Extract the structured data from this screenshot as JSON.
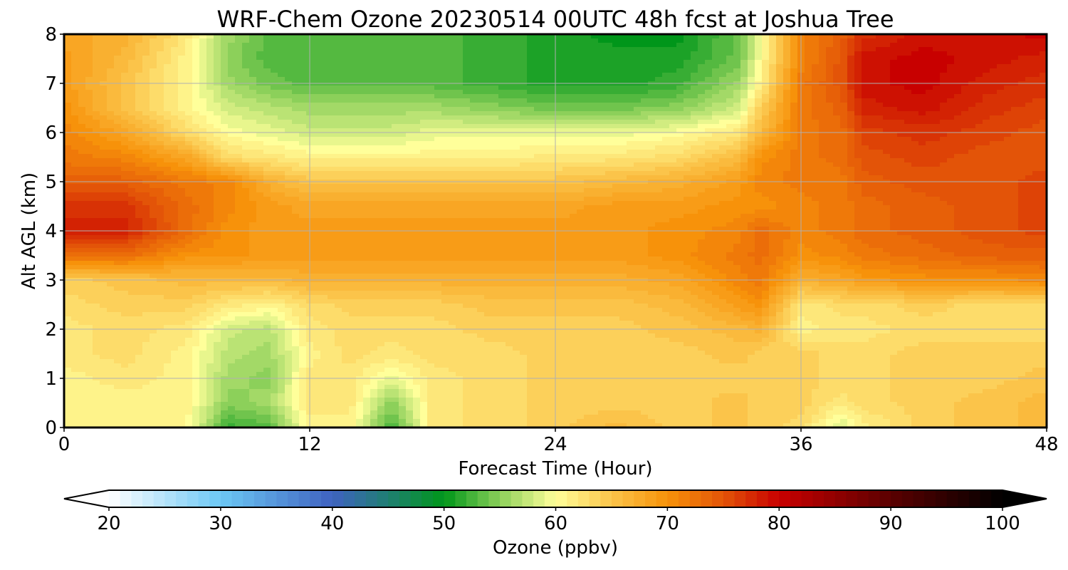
{
  "chart_data": {
    "type": "heatmap",
    "title": "WRF-Chem Ozone  20230514 00UTC 48h fcst at Joshua Tree",
    "xlabel": "Forecast Time (Hour)",
    "ylabel": "Alt AGL (km)",
    "xlim": [
      0,
      48
    ],
    "ylim": [
      0,
      8
    ],
    "xticks": [
      0,
      12,
      24,
      36,
      48
    ],
    "yticks": [
      0,
      1,
      2,
      3,
      4,
      5,
      6,
      7,
      8
    ],
    "grid": true,
    "colorbar": {
      "label": "Ozone  (ppbv)",
      "range": [
        20,
        100
      ],
      "ticks": [
        20,
        30,
        40,
        50,
        60,
        70,
        80,
        90,
        100
      ],
      "extend": "both",
      "stops": [
        {
          "v": 20,
          "c": "#ffffff"
        },
        {
          "v": 30,
          "c": "#6cc8f5"
        },
        {
          "v": 40,
          "c": "#3f62c0"
        },
        {
          "v": 45,
          "c": "#1f7f72"
        },
        {
          "v": 50,
          "c": "#00961a"
        },
        {
          "v": 55,
          "c": "#8cd05a"
        },
        {
          "v": 60,
          "c": "#ffff9a"
        },
        {
          "v": 65,
          "c": "#fbc44a"
        },
        {
          "v": 70,
          "c": "#f7920a"
        },
        {
          "v": 75,
          "c": "#e35408"
        },
        {
          "v": 80,
          "c": "#c80000"
        },
        {
          "v": 90,
          "c": "#5a0000"
        },
        {
          "v": 100,
          "c": "#000000"
        }
      ]
    },
    "x": [
      0,
      3,
      6,
      8,
      10,
      12,
      14,
      16,
      18,
      21,
      24,
      27,
      30,
      33,
      34,
      36,
      38,
      39,
      42,
      45,
      48
    ],
    "y": [
      0,
      0.5,
      1,
      1.5,
      2,
      2.5,
      3,
      3.5,
      4,
      4.5,
      5,
      5.5,
      6,
      6.5,
      7,
      7.5,
      8
    ],
    "z": [
      [
        61,
        61,
        60.5,
        52,
        53,
        61,
        61,
        52,
        62,
        63,
        64,
        66,
        64,
        65,
        64,
        63,
        58,
        61,
        64,
        65,
        66
      ],
      [
        61,
        61,
        61,
        55,
        56,
        62,
        62,
        55,
        62,
        63,
        64,
        64,
        64,
        65,
        64,
        64,
        62,
        63,
        64,
        65,
        66
      ],
      [
        61,
        62,
        61,
        56,
        55,
        62,
        62,
        59,
        62,
        63,
        64,
        64,
        64,
        64,
        64,
        64,
        63,
        63,
        64,
        64,
        65
      ],
      [
        62,
        63,
        61,
        57,
        56,
        61,
        63,
        62,
        63,
        63,
        64,
        64,
        64,
        65,
        64,
        64,
        63,
        63,
        64,
        64,
        64
      ],
      [
        62,
        63,
        62,
        58,
        57,
        62,
        63,
        63,
        63,
        64,
        64,
        64,
        65,
        66,
        67,
        61,
        62,
        62,
        63,
        63,
        63
      ],
      [
        63,
        64,
        64,
        62,
        61,
        63,
        64,
        64,
        64,
        65,
        65,
        65,
        66,
        69,
        70,
        62,
        63,
        63,
        64,
        63,
        63
      ],
      [
        64,
        65,
        66,
        66,
        66,
        67,
        67,
        67,
        67,
        67,
        67,
        67,
        68,
        71,
        72,
        67,
        68,
        69,
        70,
        70,
        71
      ],
      [
        73,
        73,
        70,
        70,
        69,
        69,
        69,
        69,
        69,
        69,
        69,
        69,
        70,
        72,
        73,
        70,
        71,
        72,
        73,
        74,
        74
      ],
      [
        78,
        78,
        73,
        70,
        69,
        69,
        69,
        69,
        69,
        69,
        69,
        69,
        70,
        71,
        73,
        71,
        72,
        73,
        74,
        75,
        76
      ],
      [
        77,
        77,
        73,
        71,
        69,
        68,
        68,
        68,
        68,
        68,
        68,
        69,
        69,
        70,
        70,
        71,
        72,
        73,
        74,
        75,
        76
      ],
      [
        74,
        74,
        72,
        71,
        67,
        65,
        65,
        65,
        65,
        65,
        65,
        66,
        67,
        69,
        71,
        72,
        72,
        74,
        75,
        75,
        76
      ],
      [
        72,
        71,
        68,
        63,
        62,
        61,
        61,
        61,
        61,
        61,
        62,
        62,
        63,
        66,
        70,
        72,
        73,
        75,
        76,
        75,
        75
      ],
      [
        71,
        68,
        63,
        60,
        59,
        58,
        58,
        58,
        59,
        59,
        59,
        59,
        60,
        62,
        66,
        72,
        73,
        76,
        77,
        76,
        75
      ],
      [
        70,
        65,
        61,
        58,
        57,
        56,
        56,
        56,
        56,
        55,
        54,
        54,
        55,
        58,
        64,
        72,
        74,
        78,
        79,
        77,
        76
      ],
      [
        69,
        65,
        61,
        56,
        54,
        53,
        53,
        53,
        53,
        52,
        51,
        51,
        52,
        56,
        61,
        72,
        75,
        79,
        80,
        78,
        77
      ],
      [
        69,
        66,
        61,
        55,
        53,
        53,
        53,
        53,
        53,
        52,
        51,
        51,
        51,
        54,
        60,
        71,
        75,
        79,
        80,
        79,
        78
      ],
      [
        68,
        67,
        62,
        56,
        53,
        53,
        53,
        53,
        53,
        52,
        51,
        50,
        50,
        54,
        60,
        71,
        74,
        77,
        79,
        79,
        80
      ]
    ]
  }
}
